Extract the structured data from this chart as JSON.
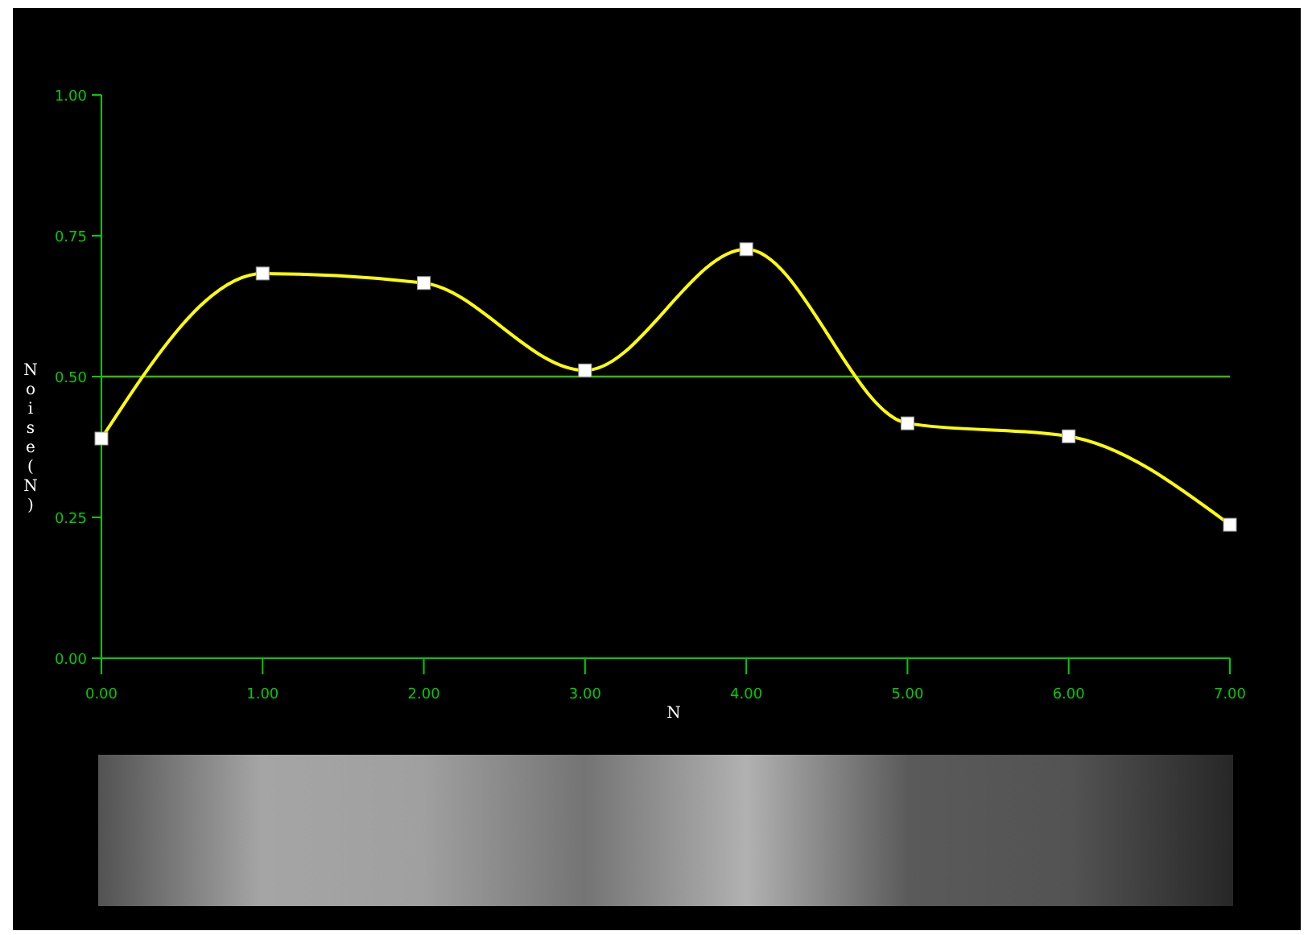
{
  "chart_data": {
    "type": "line",
    "xlabel": "N",
    "ylabel": "Noise(N)",
    "x": [
      0,
      1,
      2,
      3,
      4,
      5,
      6,
      7
    ],
    "series": [
      {
        "color": "#ffff00",
        "values": [
          0.39,
          0.683,
          0.666,
          0.511,
          0.726,
          0.417,
          0.394,
          0.237
        ]
      }
    ],
    "xlim": [
      0,
      7
    ],
    "ylim": [
      0,
      1
    ],
    "xticks": [
      {
        "value": 0,
        "label": "0.00"
      },
      {
        "value": 1,
        "label": "1.00"
      },
      {
        "value": 2,
        "label": "2.00"
      },
      {
        "value": 3,
        "label": "3.00"
      },
      {
        "value": 4,
        "label": "4.00"
      },
      {
        "value": 5,
        "label": "5.00"
      },
      {
        "value": 6,
        "label": "6.00"
      },
      {
        "value": 7,
        "label": "7.00"
      }
    ],
    "yticks": [
      {
        "value": 0,
        "label": "0.00"
      },
      {
        "value": 0.25,
        "label": "0.25"
      },
      {
        "value": 0.5,
        "label": "0.50"
      },
      {
        "value": 0.75,
        "label": "0.75"
      },
      {
        "value": 1,
        "label": "1.00"
      }
    ],
    "ref_lines": [
      {
        "axis": "y",
        "value": 0.5,
        "color": "#33bb00"
      }
    ],
    "marker": "square"
  }
}
